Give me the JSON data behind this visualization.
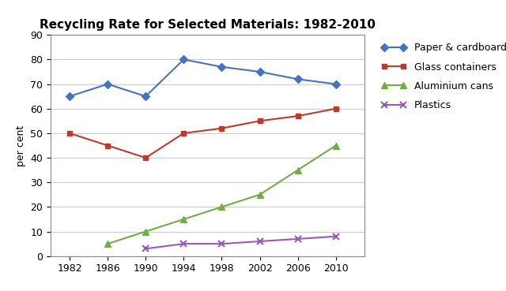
{
  "title": "Recycling Rate for Selected Materials: 1982-2010",
  "ylabel": "per cent",
  "years": [
    1982,
    1986,
    1990,
    1994,
    1998,
    2002,
    2006,
    2010
  ],
  "series": [
    {
      "label": "Paper & cardboard",
      "values": [
        65,
        70,
        65,
        80,
        77,
        75,
        72,
        70
      ],
      "color": "#4472C4",
      "marker": "D",
      "markersize": 5,
      "linewidth": 1.5
    },
    {
      "label": "Glass containers",
      "values": [
        50,
        45,
        40,
        50,
        52,
        55,
        57,
        60
      ],
      "color": "#C0392B",
      "marker": "s",
      "markersize": 5,
      "linewidth": 1.5
    },
    {
      "label": "Aluminium cans",
      "values": [
        null,
        5,
        10,
        15,
        20,
        25,
        35,
        45
      ],
      "color": "#70AD47",
      "marker": "^",
      "markersize": 6,
      "linewidth": 1.5
    },
    {
      "label": "Plastics",
      "values": [
        null,
        null,
        3,
        5,
        5,
        6,
        7,
        8
      ],
      "color": "#9B59B6",
      "marker": "x",
      "markersize": 6,
      "linewidth": 1.5
    }
  ],
  "ylim": [
    0,
    90
  ],
  "yticks": [
    0,
    10,
    20,
    30,
    40,
    50,
    60,
    70,
    80,
    90
  ],
  "xticks": [
    1982,
    1986,
    1990,
    1994,
    1998,
    2002,
    2006,
    2010
  ],
  "xlim": [
    1980,
    2013
  ],
  "background_color": "#ffffff",
  "grid_color": "#cccccc",
  "title_fontsize": 11,
  "axis_label_fontsize": 9,
  "tick_fontsize": 9,
  "legend_fontsize": 9
}
